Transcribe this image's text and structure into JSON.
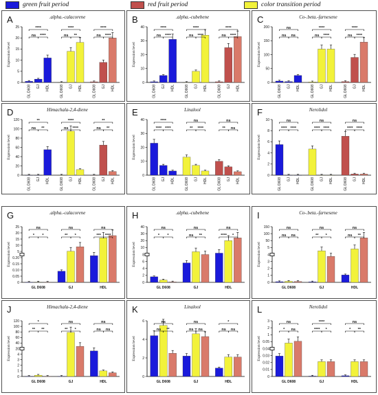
{
  "legend": [
    {
      "label": "green fruit period",
      "color": "#1a1adb"
    },
    {
      "label": "red fruit period",
      "color": "#c0504d"
    },
    {
      "label": "color transition period",
      "color": "#f2f23a"
    }
  ],
  "colors": {
    "green": "#1a1adb",
    "yellow": "#f2f23a",
    "red": "#c0504d",
    "red_light": "#d97a6a"
  },
  "y_axis_label": "Expression level",
  "chart_data": [
    {
      "letter": "A",
      "title": ".alpha.-calacorene",
      "type": "bar",
      "groups": [
        "GL D608",
        "GJ",
        "HDL"
      ],
      "subcats": [
        "GL D608",
        "GJ",
        "HDL"
      ],
      "ylim": [
        0,
        25
      ],
      "yticks": [
        0,
        5,
        10,
        15,
        20,
        25
      ],
      "values": [
        [
          0.5,
          1.5,
          11
        ],
        [
          0,
          14,
          18
        ],
        [
          0.3,
          9,
          20
        ]
      ],
      "sig": [
        [
          "ns",
          "****",
          "****"
        ],
        [
          "ns",
          "**",
          "****"
        ],
        [
          "ns",
          "****",
          "****"
        ]
      ]
    },
    {
      "letter": "B",
      "title": ".alpha.-cubebene",
      "type": "bar",
      "groups": [
        "GL D608",
        "GJ",
        "HDL"
      ],
      "subcats": [
        "GL D608",
        "GJ",
        "HDL"
      ],
      "ylim": [
        0,
        40
      ],
      "yticks": [
        0,
        10,
        20,
        30,
        40
      ],
      "values": [
        [
          0.5,
          5,
          31
        ],
        [
          0,
          8,
          34
        ],
        [
          0.5,
          25,
          33
        ]
      ],
      "sig": [
        [
          "ns",
          "****",
          "****"
        ],
        [
          "ns",
          "****",
          "****"
        ],
        [
          "ns",
          "****",
          "****"
        ]
      ]
    },
    {
      "letter": "C",
      "title": "Co-.beta.-farnesene",
      "type": "bar",
      "groups": [
        "GL D608",
        "GJ",
        "HDL"
      ],
      "subcats": [
        "GL D608",
        "GJ",
        "HDL"
      ],
      "ylim": [
        0,
        200
      ],
      "yticks": [
        0,
        50,
        100,
        150,
        200
      ],
      "values": [
        [
          5,
          3,
          25
        ],
        [
          2,
          120,
          120
        ],
        [
          3,
          90,
          145
        ]
      ],
      "sig": [
        [
          "ns",
          "ns",
          "ns"
        ],
        [
          "ns",
          "****",
          "****"
        ],
        [
          "ns",
          "****",
          "****"
        ]
      ]
    },
    {
      "letter": "D",
      "title": "Himachala-2,4-diene",
      "type": "bar",
      "groups": [
        "GL D608",
        "GJ",
        "HDL"
      ],
      "subcats": [
        "GL D608",
        "GJ",
        "HDL"
      ],
      "ylim": [
        0,
        120
      ],
      "yticks": [
        0,
        20,
        40,
        60,
        80,
        100,
        120
      ],
      "values": [
        [
          0,
          0,
          55
        ],
        [
          0,
          95,
          12
        ],
        [
          0,
          65,
          8
        ]
      ],
      "sig": [
        [
          "ns",
          "**",
          "**"
        ],
        [
          "ns",
          "****",
          "****"
        ],
        [
          "ns",
          "**",
          "**"
        ]
      ]
    },
    {
      "letter": "E",
      "title": "Linalool",
      "type": "bar",
      "groups": [
        "GL D608",
        "GJ",
        "HDL"
      ],
      "subcats": [
        "GL D608",
        "GJ",
        "HDL"
      ],
      "ylim": [
        0,
        40
      ],
      "yticks": [
        0,
        10,
        20,
        30,
        40
      ],
      "values": [
        [
          23,
          7,
          3
        ],
        [
          13,
          7,
          3
        ],
        [
          10,
          6,
          2.5
        ]
      ],
      "sig": [
        [
          "****",
          "****",
          "****"
        ],
        [
          "**",
          "****",
          "ns"
        ],
        [
          "**",
          "ns",
          "ns"
        ]
      ]
    },
    {
      "letter": "F",
      "title": "Nerolidol",
      "type": "bar",
      "groups": [
        "GL D608",
        "GJ",
        "HDL"
      ],
      "subcats": [
        "GL D608",
        "GJ",
        "HDL"
      ],
      "ylim": [
        0,
        10
      ],
      "yticks": [
        0,
        2,
        4,
        6,
        8,
        10
      ],
      "values": [
        [
          5.5,
          0,
          0
        ],
        [
          4.7,
          0,
          0
        ],
        [
          7,
          0.2,
          0.2
        ]
      ],
      "sig": [
        [
          "****",
          "****",
          "ns"
        ],
        [
          "****",
          "****",
          "ns"
        ],
        [
          "****",
          "****",
          "ns"
        ]
      ]
    },
    {
      "letter": "G",
      "title": ".alpha.-calacorene",
      "type": "bar",
      "groups": [
        "GL D608",
        "GJ",
        "HDL"
      ],
      "subcats": [
        "green fruit period",
        "color transition period",
        "red fruit period"
      ],
      "ylim": [
        0,
        25
      ],
      "yticks": [
        "0",
        "0.05",
        "0.10",
        "0.15",
        "0.20",
        "5",
        "10",
        "15",
        "20",
        "25"
      ],
      "values": [
        [
          0.02,
          0.12,
          0.06
        ],
        [
          5,
          14,
          16
        ],
        [
          12,
          20,
          21
        ]
      ],
      "sig": [
        [
          "*",
          "*",
          "ns"
        ],
        [
          "**",
          "*",
          "ns"
        ],
        [
          "***",
          "****",
          "ns"
        ]
      ]
    },
    {
      "letter": "H",
      "title": ".alpha.-cubebene",
      "type": "bar",
      "groups": [
        "GL D608",
        "GJ",
        "HDL"
      ],
      "subcats": [
        "green fruit period",
        "color transition period",
        "red fruit period"
      ],
      "ylim": [
        0,
        40
      ],
      "yticks": [
        "0",
        "2",
        "4",
        "6",
        "8",
        "10",
        "20",
        "30",
        "40"
      ],
      "values": [
        [
          4,
          1.7,
          0.3
        ],
        [
          14,
          22,
          20
        ],
        [
          21,
          30,
          32
        ]
      ],
      "sig": [
        [
          "*",
          "*",
          "ns"
        ],
        [
          "ns",
          "**",
          "ns"
        ],
        [
          "****",
          "*",
          "ns"
        ]
      ]
    },
    {
      "letter": "I",
      "title": "Co-.beta.-farnesene",
      "type": "bar",
      "groups": [
        "GL D608",
        "GJ",
        "HDL"
      ],
      "subcats": [
        "green fruit period",
        "color transition period",
        "red fruit period"
      ],
      "ylim": [
        0,
        150
      ],
      "yticks": [
        "0",
        "1",
        "2",
        "3",
        "4",
        "5",
        "50",
        "100",
        "150"
      ],
      "values": [
        [
          1.8,
          2.8,
          2.3
        ],
        [
          1.2,
          85,
          70
        ],
        [
          20,
          90,
          120
        ]
      ],
      "sig": [
        [
          "ns",
          "ns",
          "ns"
        ],
        [
          "**",
          "*",
          "ns"
        ],
        [
          "ns",
          "**",
          "ns"
        ]
      ]
    },
    {
      "letter": "J",
      "title": "Himachala-2,4-diene",
      "type": "bar",
      "groups": [
        "GL D608",
        "GJ",
        "HDL"
      ],
      "subcats": [
        "green fruit period",
        "color transition period",
        "red fruit period"
      ],
      "ylim": [
        0,
        120
      ],
      "yticks": [
        "0",
        "1",
        "2",
        "3",
        "4",
        "20",
        "40",
        "60",
        "80",
        "100",
        "120"
      ],
      "values": [
        [
          0.2,
          2.7,
          0.3
        ],
        [
          0.3,
          95,
          65
        ],
        [
          55,
          12,
          8
        ]
      ],
      "sig": [
        [
          "**",
          "**",
          "*"
        ],
        [
          "**",
          "*",
          "ns"
        ],
        [
          "ns",
          "ns",
          "ns"
        ]
      ]
    },
    {
      "letter": "K",
      "title": "Linalool",
      "type": "bar",
      "groups": [
        "GL D608",
        "GJ",
        "HDL"
      ],
      "subcats": [
        "green fruit period",
        "color transition period",
        "red fruit period"
      ],
      "ylim": [
        0,
        6
      ],
      "yticks": [
        "0",
        "2",
        "4",
        "6"
      ],
      "values": [
        [
          4.4,
          5.5,
          2.5
        ],
        [
          2.2,
          4.6,
          4.3
        ],
        [
          0.9,
          2.1,
          2.1
        ]
      ],
      "sig": [
        [
          "ns",
          "**",
          "ns"
        ],
        [
          "ns",
          "ns",
          "ns"
        ],
        [
          "ns",
          "ns",
          "*"
        ]
      ]
    },
    {
      "letter": "L",
      "title": "Nerolidol",
      "type": "bar",
      "groups": [
        "GL D608",
        "GJ",
        "HDL"
      ],
      "subcats": [
        "green fruit period",
        "color transition period",
        "red fruit period"
      ],
      "ylim": [
        0,
        3
      ],
      "yticks": [
        "0",
        "0.01",
        "0.02",
        "0.03",
        "0.04",
        "0.05",
        "1",
        "2",
        "3"
      ],
      "values": [
        [
          1.1,
          1.8,
          1.9
        ],
        [
          0.02,
          0.8,
          0.8
        ],
        [
          0.04,
          0.8,
          0.8
        ]
      ],
      "sig": [
        [
          "*",
          "ns",
          "ns"
        ],
        [
          "****",
          "*",
          "****"
        ],
        [
          "*",
          "**",
          "ns"
        ]
      ]
    }
  ]
}
